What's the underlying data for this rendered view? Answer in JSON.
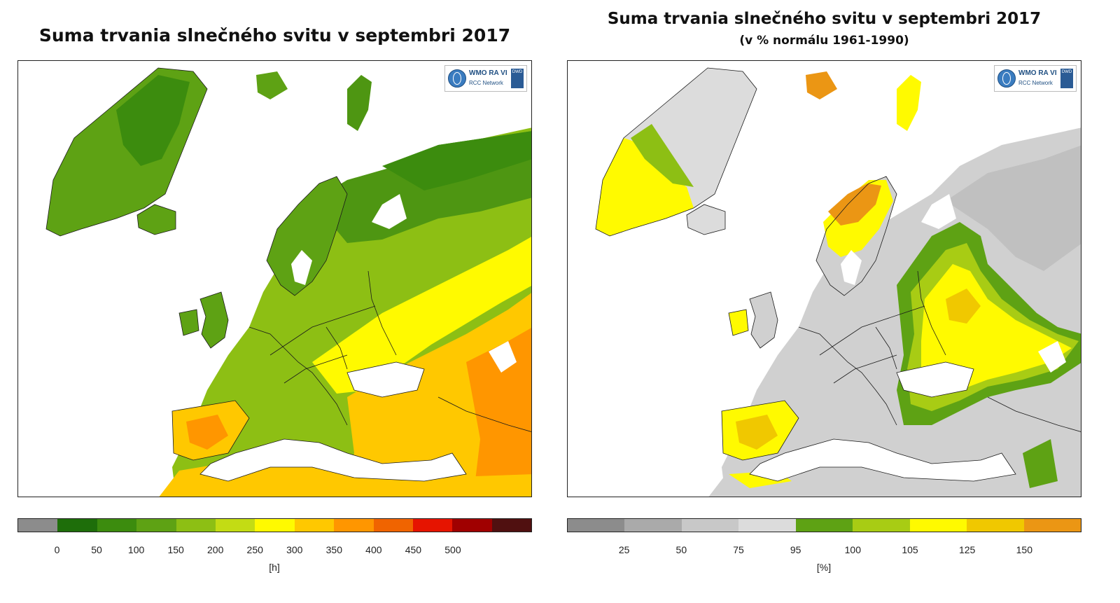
{
  "left_panel": {
    "title": "Suma trvania slnečného svitu v septembri 2017",
    "badge": {
      "org": "WMO RA VI",
      "network": "RCC Network",
      "logo2": "DWD"
    },
    "legend": {
      "ticks": [
        "0",
        "50",
        "100",
        "150",
        "200",
        "250",
        "300",
        "350",
        "400",
        "450",
        "500"
      ],
      "unit": "[h]",
      "colors": [
        "#8c8c8c",
        "#1e6e0a",
        "#3c8c0e",
        "#5ea214",
        "#8dbf14",
        "#c3dc14",
        "#fffa00",
        "#ffc800",
        "#ff9600",
        "#f06400",
        "#e61400",
        "#a00000",
        "#501010"
      ]
    }
  },
  "right_panel": {
    "title": "Suma trvania slnečného svitu v septembri 2017",
    "subtitle": "(v % normálu 1961-1990)",
    "badge": {
      "org": "WMO RA VI",
      "network": "RCC Network",
      "logo2": "DWD"
    },
    "legend": {
      "ticks": [
        "25",
        "50",
        "75",
        "95",
        "100",
        "105",
        "125",
        "150"
      ],
      "unit": "[%]",
      "colors": [
        "#8c8c8c",
        "#aaaaaa",
        "#c8c8c8",
        "#dcdcdc",
        "#5ea214",
        "#a8cc14",
        "#fffa00",
        "#f0c800",
        "#eb9614"
      ]
    }
  }
}
